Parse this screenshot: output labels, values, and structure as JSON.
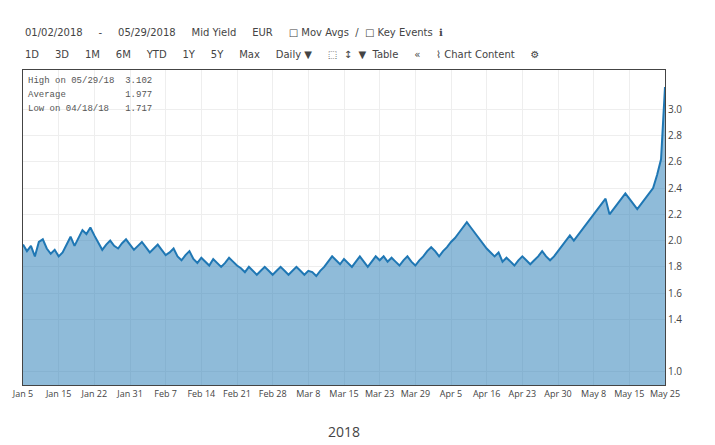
{
  "chart_data": {
    "type": "area",
    "xlabel": "2018",
    "categories": [
      "Jan 5",
      null,
      null,
      null,
      null,
      null,
      null,
      null,
      null,
      "Jan 15",
      null,
      null,
      null,
      null,
      null,
      null,
      null,
      null,
      "Jan 22",
      null,
      null,
      null,
      null,
      null,
      null,
      null,
      null,
      "Jan 31",
      null,
      null,
      null,
      null,
      null,
      null,
      null,
      null,
      "Feb 7",
      null,
      null,
      null,
      null,
      null,
      null,
      null,
      null,
      "Feb 14",
      null,
      null,
      null,
      null,
      null,
      null,
      null,
      null,
      "Feb 21",
      null,
      null,
      null,
      null,
      null,
      null,
      null,
      null,
      "Feb 28",
      null,
      null,
      null,
      null,
      null,
      null,
      null,
      null,
      "Mar 8",
      null,
      null,
      null,
      null,
      null,
      null,
      null,
      null,
      "Mar 15",
      null,
      null,
      null,
      null,
      null,
      null,
      null,
      null,
      "Mar 23",
      null,
      null,
      null,
      null,
      null,
      null,
      null,
      null,
      "Mar 29",
      null,
      null,
      null,
      null,
      null,
      null,
      null,
      null,
      "Apr 5",
      null,
      null,
      null,
      null,
      null,
      null,
      null,
      null,
      "Apr 16",
      null,
      null,
      null,
      null,
      null,
      null,
      null,
      null,
      "Apr 23",
      null,
      null,
      null,
      null,
      null,
      null,
      null,
      null,
      "Apr 30",
      null,
      null,
      null,
      null,
      null,
      null,
      null,
      null,
      "May 8",
      null,
      null,
      null,
      null,
      null,
      null,
      null,
      null,
      "May 15",
      null,
      null,
      null,
      null,
      null,
      null,
      null,
      null,
      "May 25"
    ],
    "values": [
      1.97,
      1.92,
      1.96,
      1.88,
      1.99,
      2.01,
      1.94,
      1.9,
      1.93,
      1.88,
      1.91,
      1.97,
      2.03,
      1.96,
      2.02,
      2.08,
      2.05,
      2.1,
      2.04,
      1.98,
      1.93,
      1.97,
      2.0,
      1.96,
      1.94,
      1.98,
      2.01,
      1.97,
      1.93,
      1.96,
      1.99,
      1.95,
      1.91,
      1.94,
      1.97,
      1.93,
      1.89,
      1.91,
      1.94,
      1.88,
      1.85,
      1.89,
      1.92,
      1.86,
      1.83,
      1.87,
      1.84,
      1.81,
      1.86,
      1.83,
      1.8,
      1.83,
      1.87,
      1.84,
      1.81,
      1.79,
      1.76,
      1.8,
      1.77,
      1.74,
      1.77,
      1.8,
      1.77,
      1.74,
      1.77,
      1.8,
      1.77,
      1.74,
      1.77,
      1.8,
      1.77,
      1.74,
      1.77,
      1.76,
      1.73,
      1.77,
      1.8,
      1.84,
      1.88,
      1.85,
      1.82,
      1.86,
      1.83,
      1.8,
      1.84,
      1.88,
      1.84,
      1.8,
      1.84,
      1.88,
      1.85,
      1.88,
      1.84,
      1.87,
      1.84,
      1.81,
      1.85,
      1.88,
      1.84,
      1.81,
      1.85,
      1.88,
      1.92,
      1.95,
      1.92,
      1.88,
      1.92,
      1.95,
      1.99,
      2.02,
      2.06,
      2.1,
      2.14,
      2.1,
      2.06,
      2.02,
      1.98,
      1.94,
      1.91,
      1.88,
      1.91,
      1.84,
      1.87,
      1.84,
      1.81,
      1.85,
      1.88,
      1.85,
      1.82,
      1.85,
      1.88,
      1.92,
      1.88,
      1.85,
      1.88,
      1.92,
      1.96,
      2.0,
      2.04,
      2.0,
      2.04,
      2.08,
      2.12,
      2.16,
      2.2,
      2.24,
      2.28,
      2.32,
      2.2,
      2.24,
      2.28,
      2.32,
      2.36,
      2.32,
      2.28,
      2.24,
      2.28,
      2.32,
      2.36,
      2.4,
      2.5,
      2.62,
      3.17
    ],
    "ylim": [
      0.9,
      3.3
    ],
    "yticks": [
      {
        "value": 1.0,
        "label": "1.0"
      },
      1.4,
      1.6,
      1.8,
      {
        "value": 2.0,
        "label": "2.0"
      },
      2.2,
      2.4,
      2.6,
      2.8,
      {
        "value": 3.0,
        "label": "3.0"
      }
    ],
    "grid": true,
    "annotations": [
      [
        "01/02/2018",
        "-",
        "05/29/2018",
        "Mid Yield",
        "EUR",
        "□ Mov Avgs  /  □ Key Events  ℹ"
      ],
      [
        "1D",
        "3D",
        "1M",
        "6M",
        "YTD",
        "1Y",
        "5Y",
        "Max",
        "Daily ▼",
        "⬚  ↕  ▼  Table",
        "«",
        "⌇ Chart Content",
        "⚙"
      ],
      [
        "High on 05/29/18  3.102",
        "Average           1.977",
        "Low on 04/18/18   1.717"
      ]
    ]
  }
}
